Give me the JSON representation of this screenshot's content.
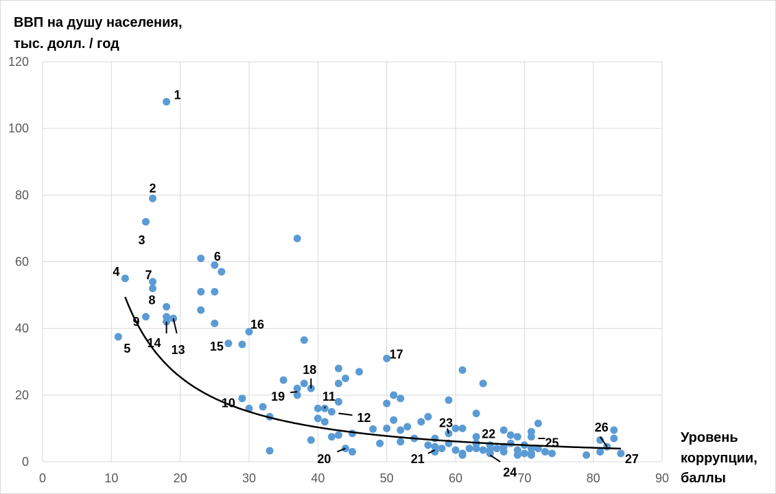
{
  "chart_data": {
    "type": "scatter",
    "title": "",
    "ylabel_lines": [
      "ВВП на душу населения,",
      "тыс. долл. / год"
    ],
    "xlabel_lines": [
      "Уровень",
      "коррупции,",
      "баллы"
    ],
    "xlim": [
      0,
      90
    ],
    "ylim": [
      0,
      120
    ],
    "x_ticks": [
      0,
      10,
      20,
      30,
      40,
      50,
      60,
      70,
      80,
      90
    ],
    "y_ticks": [
      0,
      20,
      40,
      60,
      80,
      100,
      120
    ],
    "grid": true,
    "point_color": "#5b9bd5",
    "trend_color": "#000000",
    "points": [
      [
        18,
        108
      ],
      [
        16,
        79
      ],
      [
        15,
        72
      ],
      [
        12,
        55
      ],
      [
        11,
        37.5
      ],
      [
        25,
        59
      ],
      [
        16,
        54
      ],
      [
        16,
        52
      ],
      [
        18,
        46.5
      ],
      [
        15,
        43.5
      ],
      [
        18,
        43.5
      ],
      [
        18,
        42
      ],
      [
        19,
        43
      ],
      [
        23,
        61
      ],
      [
        26,
        57
      ],
      [
        23,
        51
      ],
      [
        25,
        51
      ],
      [
        23,
        45.5
      ],
      [
        25,
        41.5
      ],
      [
        27,
        35.5
      ],
      [
        29,
        35.2
      ],
      [
        30,
        39
      ],
      [
        37,
        67
      ],
      [
        38,
        36.5
      ],
      [
        29,
        19
      ],
      [
        30,
        16
      ],
      [
        32,
        16.5
      ],
      [
        33,
        13.5
      ],
      [
        33,
        3.3
      ],
      [
        35,
        24.5
      ],
      [
        37,
        20
      ],
      [
        37,
        22
      ],
      [
        38,
        23.5
      ],
      [
        39,
        22
      ],
      [
        39,
        6.5
      ],
      [
        40,
        13
      ],
      [
        40,
        16
      ],
      [
        41,
        12
      ],
      [
        41,
        16
      ],
      [
        42,
        15
      ],
      [
        42,
        7.5
      ],
      [
        43,
        18
      ],
      [
        43,
        23.5
      ],
      [
        43,
        28
      ],
      [
        43,
        8
      ],
      [
        44,
        25
      ],
      [
        44,
        4
      ],
      [
        45,
        8.5
      ],
      [
        45,
        3
      ],
      [
        46,
        27
      ],
      [
        48,
        9.8
      ],
      [
        49,
        5.5
      ],
      [
        50,
        17.5
      ],
      [
        50,
        31
      ],
      [
        50,
        10
      ],
      [
        51,
        20
      ],
      [
        51,
        12.5
      ],
      [
        52,
        19
      ],
      [
        52,
        9.5
      ],
      [
        52,
        6
      ],
      [
        53,
        10.5
      ],
      [
        54,
        7
      ],
      [
        55,
        12
      ],
      [
        56,
        13.5
      ],
      [
        56,
        5
      ],
      [
        57,
        4.5
      ],
      [
        57,
        7
      ],
      [
        57,
        3
      ],
      [
        58,
        4
      ],
      [
        59,
        18.5
      ],
      [
        59,
        8.5
      ],
      [
        59,
        5.5
      ],
      [
        60,
        10
      ],
      [
        60,
        3.5
      ],
      [
        61,
        27.5
      ],
      [
        61,
        10
      ],
      [
        61,
        2.5
      ],
      [
        61,
        2
      ],
      [
        62,
        4
      ],
      [
        63,
        14.5
      ],
      [
        63,
        7.5
      ],
      [
        63,
        5.5
      ],
      [
        63,
        4
      ],
      [
        64,
        23.5
      ],
      [
        64,
        3.5
      ],
      [
        65,
        5
      ],
      [
        65,
        3.5
      ],
      [
        65,
        2.5
      ],
      [
        66,
        4
      ],
      [
        67,
        9.5
      ],
      [
        67,
        4.5
      ],
      [
        67,
        3
      ],
      [
        68,
        8
      ],
      [
        68,
        5.5
      ],
      [
        69,
        7.5
      ],
      [
        69,
        3.5
      ],
      [
        69,
        2
      ],
      [
        70,
        5
      ],
      [
        70,
        2.5
      ],
      [
        71,
        9
      ],
      [
        71,
        7.5
      ],
      [
        71,
        4
      ],
      [
        71,
        2.5
      ],
      [
        71,
        2
      ],
      [
        72,
        11.5
      ],
      [
        72,
        4
      ],
      [
        73,
        3
      ],
      [
        74,
        2.5
      ],
      [
        79,
        2
      ],
      [
        81,
        6.5
      ],
      [
        81,
        3
      ],
      [
        82,
        4.5
      ],
      [
        83,
        9.5
      ],
      [
        83,
        7
      ],
      [
        84,
        2.5
      ]
    ],
    "trend": {
      "type": "power",
      "a": 1250,
      "b": -1.3,
      "x_range": [
        12,
        84
      ]
    },
    "annotations": [
      {
        "text": "1",
        "x": 19,
        "y": 108,
        "lx": 19.1,
        "ly": 110,
        "anchor": "start"
      },
      {
        "text": "2",
        "x": 16,
        "y": 79,
        "lx": 16,
        "ly": 82,
        "anchor": "middle"
      },
      {
        "text": "3",
        "x": 15,
        "y": 72,
        "lx": 14.4,
        "ly": 66.5,
        "anchor": "middle"
      },
      {
        "text": "4",
        "x": 12,
        "y": 55,
        "lx": 10.7,
        "ly": 57,
        "anchor": "middle"
      },
      {
        "text": "5",
        "x": 11,
        "y": 37.5,
        "lx": 12.3,
        "ly": 34,
        "anchor": "middle"
      },
      {
        "text": "6",
        "x": 25,
        "y": 59,
        "lx": 25.4,
        "ly": 61.5,
        "anchor": "middle"
      },
      {
        "text": "7",
        "x": 16,
        "y": 54,
        "lx": 15.4,
        "ly": 56,
        "anchor": "middle"
      },
      {
        "text": "8",
        "x": 18,
        "y": 46.5,
        "lx": 15.9,
        "ly": 48.5,
        "anchor": "middle"
      },
      {
        "text": "9",
        "x": 15,
        "y": 43.5,
        "lx": 13.6,
        "ly": 42,
        "anchor": "middle"
      },
      {
        "text": "10",
        "x": 29,
        "y": 19,
        "lx": 27,
        "ly": 17.6,
        "anchor": "middle"
      },
      {
        "text": "11",
        "x": 41,
        "y": 16,
        "lx": 41.6,
        "ly": 19.6,
        "anchor": "middle"
      },
      {
        "text": "12",
        "x": 43,
        "y": 14.5,
        "lx": 45.7,
        "ly": 13.2,
        "anchor": "start"
      },
      {
        "text": "13",
        "x": 19,
        "y": 41,
        "lx": 19.7,
        "ly": 33.6,
        "anchor": "middle"
      },
      {
        "text": "14",
        "x": 18,
        "y": 41,
        "lx": 16.2,
        "ly": 35.6,
        "anchor": "middle"
      },
      {
        "text": "15",
        "x": 27,
        "y": 35.5,
        "lx": 25.3,
        "ly": 34.6,
        "anchor": "middle"
      },
      {
        "text": "16",
        "x": 30,
        "y": 39,
        "lx": 30.2,
        "ly": 41.2,
        "anchor": "start"
      },
      {
        "text": "17",
        "x": 50,
        "y": 31,
        "lx": 50.4,
        "ly": 32.2,
        "anchor": "start"
      },
      {
        "text": "18",
        "x": 39,
        "y": 22,
        "lx": 38.8,
        "ly": 27.6,
        "anchor": "middle"
      },
      {
        "text": "19",
        "x": 37,
        "y": 21,
        "lx": 34.2,
        "ly": 19.6,
        "anchor": "middle"
      },
      {
        "text": "20",
        "x": 44,
        "y": 4,
        "lx": 40.9,
        "ly": 0.8,
        "anchor": "middle"
      },
      {
        "text": "21",
        "x": 57,
        "y": 4,
        "lx": 54.5,
        "ly": 0.8,
        "anchor": "middle"
      },
      {
        "text": "22",
        "x": 64,
        "y": 5,
        "lx": 64.8,
        "ly": 8.3,
        "anchor": "middle"
      },
      {
        "text": "23",
        "x": 59,
        "y": 8.5,
        "lx": 58.6,
        "ly": 11.6,
        "anchor": "middle"
      },
      {
        "text": "24",
        "x": 65,
        "y": 3,
        "lx": 67.9,
        "ly": -3.2,
        "anchor": "middle"
      },
      {
        "text": "25",
        "x": 72,
        "y": 7,
        "lx": 74,
        "ly": 5.7,
        "anchor": "middle"
      },
      {
        "text": "26",
        "x": 82,
        "y": 4.5,
        "lx": 81.2,
        "ly": 10.3,
        "anchor": "middle"
      },
      {
        "text": "27",
        "x": 84,
        "y": 2.5,
        "lx": 85.6,
        "ly": 0.8,
        "anchor": "middle"
      }
    ],
    "leaders": [
      [
        [
          18,
          42
        ],
        [
          18,
          38.5
        ]
      ],
      [
        [
          19,
          43
        ],
        [
          19.5,
          38.5
        ]
      ],
      [
        [
          37,
          21
        ],
        [
          36,
          20.8
        ]
      ],
      [
        [
          39,
          22
        ],
        [
          39,
          25
        ]
      ],
      [
        [
          41,
          16
        ],
        [
          41,
          16.6
        ]
      ],
      [
        [
          43,
          14.5
        ],
        [
          45,
          14
        ]
      ],
      [
        [
          44,
          4
        ],
        [
          42.8,
          3
        ]
      ],
      [
        [
          57,
          3.5
        ],
        [
          56,
          2.5
        ]
      ],
      [
        [
          59,
          8.5
        ],
        [
          58.8,
          10
        ]
      ],
      [
        [
          65,
          2
        ],
        [
          66.5,
          0
        ]
      ],
      [
        [
          72,
          7
        ],
        [
          73,
          7
        ]
      ],
      [
        [
          82,
          4.5
        ],
        [
          81,
          7.5
        ]
      ]
    ]
  }
}
